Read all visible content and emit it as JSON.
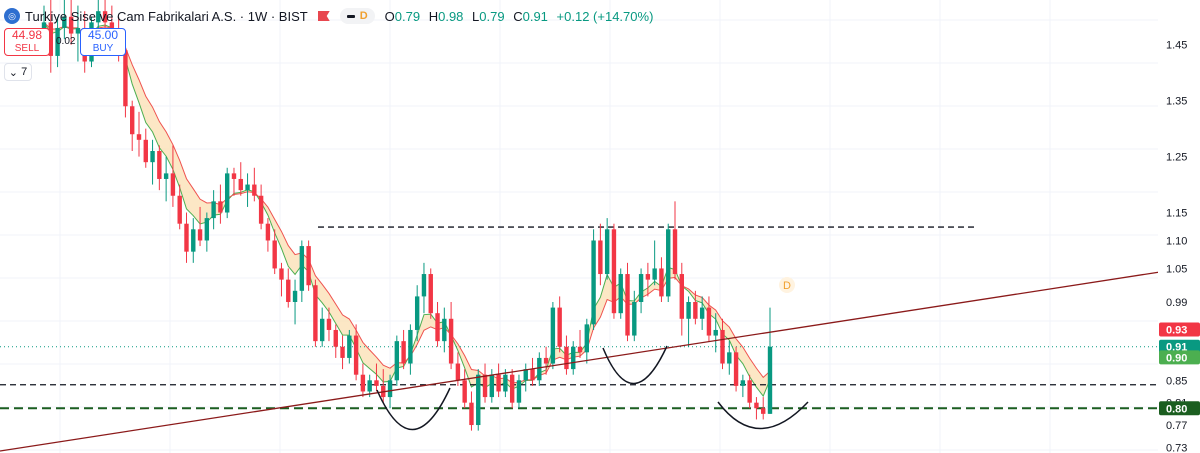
{
  "header": {
    "symbol": "Turkiye Sise ve Cam Fabrikalari A.S. · 1W · BIST",
    "indicator_badge": "D",
    "ohlc": [
      {
        "label": "O",
        "value": "0.79"
      },
      {
        "label": "H",
        "value": "0.98"
      },
      {
        "label": "L",
        "value": "0.79"
      },
      {
        "label": "C",
        "value": "0.91"
      }
    ],
    "change": "+0.12 (+14.70%)"
  },
  "trade": {
    "sell_price": "44.98",
    "sell_label": "SELL",
    "spread": "0.02",
    "buy_price": "45.00",
    "buy_label": "BUY"
  },
  "collapse_count": "7",
  "colors": {
    "up": "#089981",
    "down": "#f23645",
    "ma_fast": "#4caf50",
    "ma_slow": "#ef5350",
    "cloud": "#fbe1b6",
    "trendline": "#8b1a1a",
    "dash_line": "#131722",
    "support_line": "#1b5e20"
  },
  "chart_data": {
    "type": "candlestick",
    "timeframe": "1W",
    "ylim": [
      0.72,
      1.53
    ],
    "y_ticks": [
      "1.45",
      "1.35",
      "1.25",
      "1.15",
      "1.10",
      "1.05",
      "0.99",
      "0.85",
      "0.81",
      "0.77",
      "0.73"
    ],
    "price_labels": [
      {
        "value": 0.93,
        "text": "0.93",
        "color": "#f23645"
      },
      {
        "value": 0.91,
        "text": "0.91",
        "color": "#089981"
      },
      {
        "value": 0.9,
        "text": "0.90",
        "color": "#4caf50"
      },
      {
        "value": 0.8,
        "text": "0.80",
        "color": "#1b5e20"
      }
    ],
    "levels": [
      {
        "value": 1.124,
        "style": "dashed",
        "color": "#131722"
      },
      {
        "value": 0.842,
        "style": "dashed",
        "color": "#131722"
      },
      {
        "value": 0.8,
        "style": "dashed",
        "color": "#1b5e20"
      }
    ],
    "current_price": 0.91,
    "marker": "D",
    "candles": [
      [
        1.47,
        1.52,
        1.44,
        1.49
      ],
      [
        1.49,
        1.53,
        1.4,
        1.43
      ],
      [
        1.43,
        1.5,
        1.41,
        1.48
      ],
      [
        1.48,
        1.53,
        1.46,
        1.5
      ],
      [
        1.5,
        1.53,
        1.45,
        1.47
      ],
      [
        1.47,
        1.52,
        1.42,
        1.48
      ],
      [
        1.48,
        1.51,
        1.4,
        1.42
      ],
      [
        1.42,
        1.5,
        1.41,
        1.49
      ],
      [
        1.49,
        1.53,
        1.47,
        1.51
      ],
      [
        1.51,
        1.53,
        1.46,
        1.49
      ],
      [
        1.49,
        1.52,
        1.45,
        1.47
      ],
      [
        1.47,
        1.5,
        1.42,
        1.44
      ],
      [
        1.44,
        1.46,
        1.32,
        1.34
      ],
      [
        1.34,
        1.35,
        1.26,
        1.29
      ],
      [
        1.29,
        1.33,
        1.25,
        1.28
      ],
      [
        1.28,
        1.3,
        1.23,
        1.24
      ],
      [
        1.24,
        1.28,
        1.2,
        1.26
      ],
      [
        1.26,
        1.27,
        1.19,
        1.21
      ],
      [
        1.21,
        1.25,
        1.17,
        1.22
      ],
      [
        1.22,
        1.27,
        1.16,
        1.18
      ],
      [
        1.18,
        1.2,
        1.12,
        1.13
      ],
      [
        1.13,
        1.15,
        1.06,
        1.08
      ],
      [
        1.08,
        1.14,
        1.06,
        1.12
      ],
      [
        1.12,
        1.16,
        1.09,
        1.1
      ],
      [
        1.1,
        1.15,
        1.08,
        1.14
      ],
      [
        1.14,
        1.19,
        1.12,
        1.17
      ],
      [
        1.17,
        1.2,
        1.13,
        1.15
      ],
      [
        1.15,
        1.23,
        1.14,
        1.22
      ],
      [
        1.22,
        1.23,
        1.18,
        1.21
      ],
      [
        1.21,
        1.24,
        1.18,
        1.19
      ],
      [
        1.19,
        1.22,
        1.16,
        1.2
      ],
      [
        1.2,
        1.23,
        1.17,
        1.18
      ],
      [
        1.18,
        1.2,
        1.12,
        1.13
      ],
      [
        1.13,
        1.14,
        1.08,
        1.1
      ],
      [
        1.1,
        1.12,
        1.04,
        1.05
      ],
      [
        1.05,
        1.06,
        1.0,
        1.03
      ],
      [
        1.03,
        1.05,
        0.98,
        0.99
      ],
      [
        0.99,
        1.03,
        0.95,
        1.01
      ],
      [
        1.01,
        1.1,
        0.99,
        1.09
      ],
      [
        1.09,
        1.1,
        1.01,
        1.02
      ],
      [
        1.02,
        1.03,
        0.91,
        0.92
      ],
      [
        0.92,
        0.98,
        0.91,
        0.96
      ],
      [
        0.96,
        0.98,
        0.92,
        0.94
      ],
      [
        0.94,
        0.95,
        0.89,
        0.91
      ],
      [
        0.91,
        0.93,
        0.87,
        0.89
      ],
      [
        0.89,
        0.94,
        0.88,
        0.93
      ],
      [
        0.93,
        0.95,
        0.85,
        0.86
      ],
      [
        0.86,
        0.88,
        0.82,
        0.83
      ],
      [
        0.83,
        0.86,
        0.82,
        0.85
      ],
      [
        0.85,
        0.88,
        0.83,
        0.84
      ],
      [
        0.84,
        0.87,
        0.81,
        0.82
      ],
      [
        0.82,
        0.86,
        0.8,
        0.85
      ],
      [
        0.85,
        0.93,
        0.84,
        0.92
      ],
      [
        0.92,
        0.94,
        0.87,
        0.88
      ],
      [
        0.88,
        0.95,
        0.86,
        0.94
      ],
      [
        0.94,
        1.02,
        0.92,
        1.0
      ],
      [
        1.0,
        1.06,
        0.97,
        1.04
      ],
      [
        1.04,
        1.05,
        0.96,
        0.97
      ],
      [
        0.97,
        0.99,
        0.91,
        0.92
      ],
      [
        0.92,
        0.98,
        0.9,
        0.96
      ],
      [
        0.96,
        0.99,
        0.87,
        0.88
      ],
      [
        0.88,
        0.9,
        0.84,
        0.85
      ],
      [
        0.85,
        0.87,
        0.8,
        0.81
      ],
      [
        0.81,
        0.83,
        0.76,
        0.77
      ],
      [
        0.77,
        0.87,
        0.76,
        0.86
      ],
      [
        0.86,
        0.88,
        0.81,
        0.82
      ],
      [
        0.82,
        0.87,
        0.81,
        0.86
      ],
      [
        0.86,
        0.88,
        0.82,
        0.83
      ],
      [
        0.83,
        0.87,
        0.82,
        0.86
      ],
      [
        0.86,
        0.87,
        0.8,
        0.81
      ],
      [
        0.81,
        0.86,
        0.8,
        0.85
      ],
      [
        0.85,
        0.88,
        0.83,
        0.87
      ],
      [
        0.87,
        0.89,
        0.84,
        0.85
      ],
      [
        0.85,
        0.9,
        0.84,
        0.89
      ],
      [
        0.89,
        0.91,
        0.86,
        0.88
      ],
      [
        0.88,
        0.99,
        0.87,
        0.98
      ],
      [
        0.98,
        1.0,
        0.9,
        0.91
      ],
      [
        0.91,
        0.93,
        0.86,
        0.87
      ],
      [
        0.87,
        0.92,
        0.86,
        0.91
      ],
      [
        0.91,
        0.94,
        0.89,
        0.9
      ],
      [
        0.9,
        0.96,
        0.88,
        0.95
      ],
      [
        0.95,
        1.12,
        0.94,
        1.1
      ],
      [
        1.1,
        1.13,
        1.02,
        1.04
      ],
      [
        1.04,
        1.14,
        1.03,
        1.12
      ],
      [
        1.12,
        1.13,
        0.96,
        0.97
      ],
      [
        0.97,
        1.05,
        0.96,
        1.04
      ],
      [
        1.04,
        1.06,
        0.92,
        0.93
      ],
      [
        0.93,
        1.01,
        0.92,
        0.99
      ],
      [
        0.99,
        1.05,
        0.97,
        1.04
      ],
      [
        1.04,
        1.06,
        1.0,
        1.03
      ],
      [
        1.03,
        1.1,
        1.02,
        1.05
      ],
      [
        1.05,
        1.07,
        0.99,
        1.0
      ],
      [
        1.0,
        1.13,
        0.99,
        1.12
      ],
      [
        1.12,
        1.17,
        1.03,
        1.04
      ],
      [
        1.04,
        1.06,
        0.93,
        0.96
      ],
      [
        0.96,
        1.0,
        0.91,
        0.99
      ],
      [
        0.99,
        1.01,
        0.95,
        0.96
      ],
      [
        0.96,
        1.0,
        0.94,
        0.98
      ],
      [
        0.98,
        1.0,
        0.92,
        0.93
      ],
      [
        0.93,
        0.97,
        0.9,
        0.94
      ],
      [
        0.94,
        0.96,
        0.87,
        0.88
      ],
      [
        0.88,
        0.92,
        0.86,
        0.9
      ],
      [
        0.9,
        0.91,
        0.83,
        0.84
      ],
      [
        0.84,
        0.86,
        0.82,
        0.85
      ],
      [
        0.85,
        0.86,
        0.8,
        0.81
      ],
      [
        0.81,
        0.82,
        0.78,
        0.8
      ],
      [
        0.8,
        0.82,
        0.78,
        0.79
      ],
      [
        0.79,
        0.98,
        0.79,
        0.91
      ]
    ]
  }
}
